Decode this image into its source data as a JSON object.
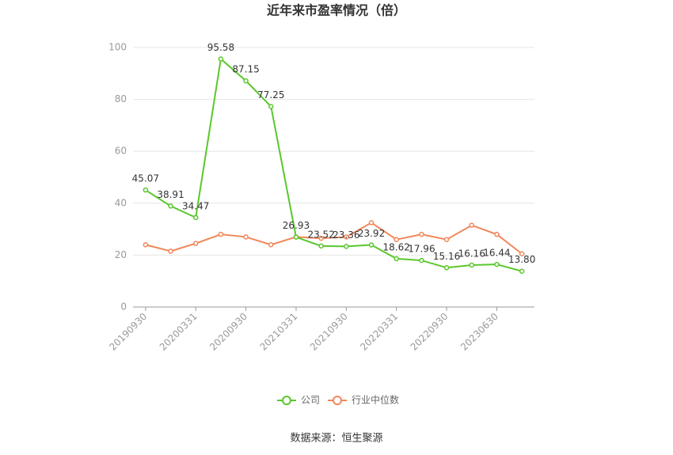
{
  "chart_data": {
    "type": "line",
    "title": "近年来市盈率情况（倍）",
    "source": "数据来源：恒生聚源",
    "categories": [
      "20190930",
      null,
      "20200331",
      null,
      "20200930",
      null,
      "20210331",
      null,
      "20210930",
      null,
      "20220331",
      null,
      "20220930",
      null,
      "20230630",
      null
    ],
    "series": [
      {
        "name": "公司",
        "color": "#5bc72c",
        "values": [
          45.07,
          38.91,
          34.47,
          95.58,
          87.15,
          77.25,
          26.93,
          23.52,
          23.36,
          23.92,
          18.62,
          17.96,
          15.16,
          16.16,
          16.44,
          13.8
        ],
        "value_labels": [
          "45.07",
          "38.91",
          "34.47",
          "95.58",
          "87.15",
          "77.25",
          "26.93",
          "23.52",
          "23.36",
          "23.92",
          "18.62",
          "17.96",
          "15.16",
          "16.16",
          "16.44",
          "13.80"
        ]
      },
      {
        "name": "行业中位数",
        "color": "#f0875a",
        "values": [
          24,
          21.5,
          24.5,
          28,
          27,
          24,
          27,
          26.5,
          27,
          32.5,
          26,
          28,
          26,
          31.5,
          28,
          20.5
        ]
      }
    ],
    "ylim": [
      0,
      100
    ],
    "yticks": [
      0,
      20,
      40,
      60,
      80,
      100
    ],
    "grid": true,
    "legend": "bottom"
  }
}
